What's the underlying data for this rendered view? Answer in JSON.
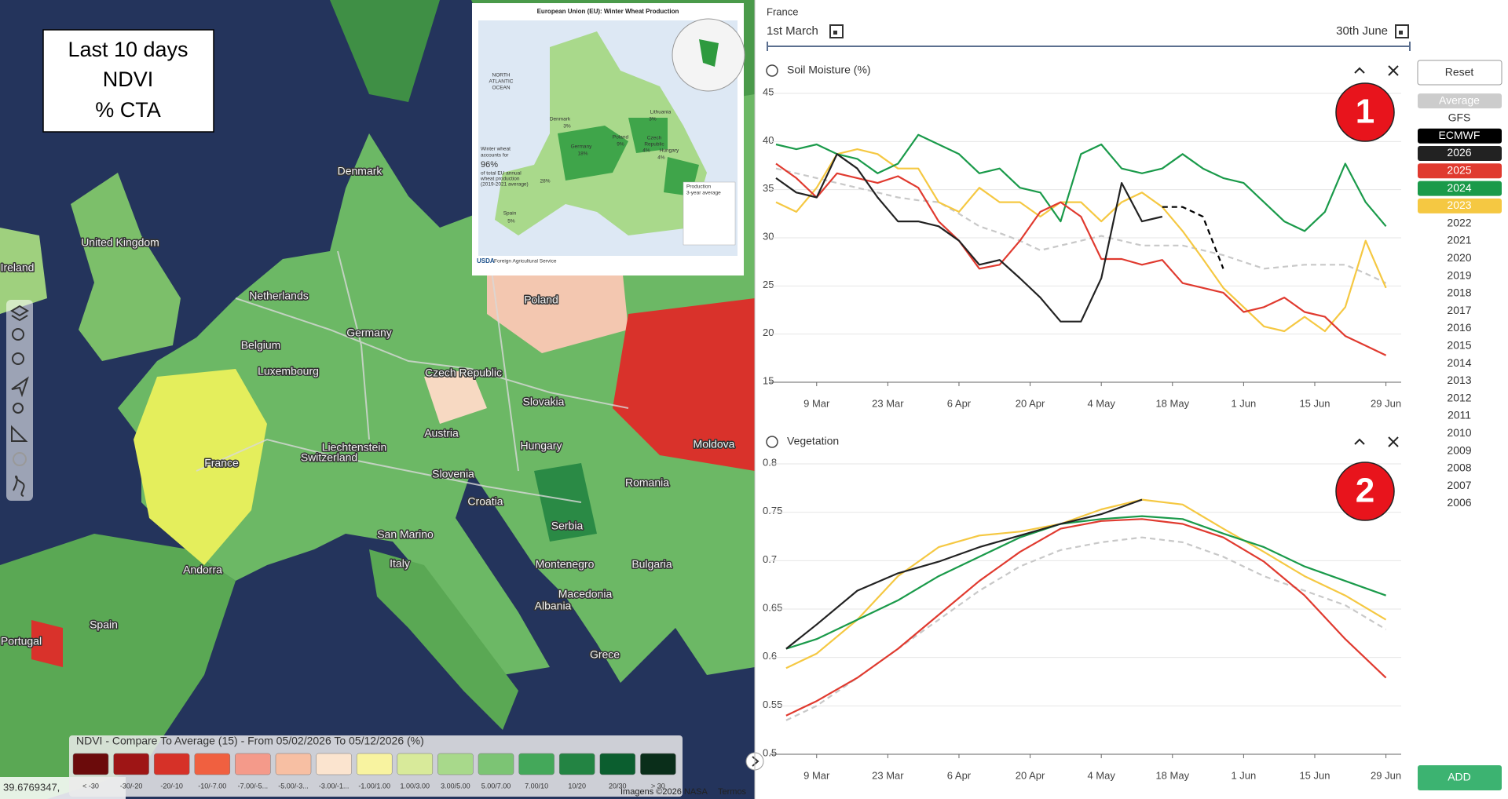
{
  "map": {
    "overlay_box": [
      "Last 10 days",
      "NDVI",
      "% CTA"
    ],
    "countries": [
      "Ireland",
      "United Kingdom",
      "Denmark",
      "Netherlands",
      "Belgium",
      "Luxembourg",
      "Germany",
      "Poland",
      "Czech Republic",
      "Slovakia",
      "Austria",
      "Hungary",
      "Moldova",
      "France",
      "Liechtenstein",
      "Switzerland",
      "Slovenia",
      "Croatia",
      "Romania",
      "Serbia",
      "San Marino",
      "Italy",
      "Montenegro",
      "Bulgaria",
      "Andorra",
      "Macedonia",
      "Albania",
      "Spain",
      "Portugal",
      "Grece"
    ],
    "legend": {
      "title": "NDVI - Compare To Average (15) - From 05/02/2026 To 05/12/2026 (%)",
      "items": [
        {
          "label": "< -30",
          "color": "#6b0b0b"
        },
        {
          "label": "-30/-20",
          "color": "#9e1515"
        },
        {
          "label": "-20/-10",
          "color": "#d63128"
        },
        {
          "label": "-10/-7.00",
          "color": "#f06040"
        },
        {
          "label": "-7.00/-5...",
          "color": "#f49a8a"
        },
        {
          "label": "-5.00/-3...",
          "color": "#f7bfa3"
        },
        {
          "label": "-3.00/-1...",
          "color": "#fbe4cf"
        },
        {
          "label": "-1.00/1.00",
          "color": "#f8f3a0"
        },
        {
          "label": "1.00/3.00",
          "color": "#d8ea9a"
        },
        {
          "label": "3.00/5.00",
          "color": "#a8d98b"
        },
        {
          "label": "5.00/7.00",
          "color": "#7cc474"
        },
        {
          "label": "7.00/10",
          "color": "#44a85a"
        },
        {
          "label": "10/20",
          "color": "#238443"
        },
        {
          "label": "20/30",
          "color": "#0b5e2f"
        },
        {
          "label": "> 30",
          "color": "#0a2e1a"
        }
      ]
    },
    "coordinates": "39.6769347,",
    "attribution": "Imagens ©2026 NASA",
    "terms": "Termos"
  },
  "inset": {
    "title": "European Union (EU): Winter Wheat Production",
    "labels": [
      "NORTH",
      "ATLANTIC",
      "OCEAN",
      "Denmark",
      "3%",
      "Lithuania",
      "3%",
      "Poland",
      "9%",
      "Germany",
      "18%",
      "Czech",
      "Republic",
      "4%",
      "Hungary",
      "4%",
      "Winter wheat",
      "accounts for",
      "96%",
      "of total EU annual",
      "wheat production",
      "(2019-2021 average)",
      "28%",
      "Spain",
      "5%",
      "Production",
      "3-year average",
      "USDA",
      "Foreign Agricultural Service"
    ]
  },
  "panel": {
    "region": "France",
    "start": "1st March",
    "end": "30th June",
    "selector": {
      "reset": "Reset",
      "items": [
        {
          "label": "Average",
          "fill": "#cccccc",
          "text": "#ffffff"
        },
        {
          "label": "GFS"
        },
        {
          "label": "ECMWF",
          "fill": "#000000",
          "text": "#ffffff"
        },
        {
          "label": "2026",
          "fill": "#222222",
          "text": "#ffffff"
        },
        {
          "label": "2025",
          "fill": "#e03a2f",
          "text": "#ffffff"
        },
        {
          "label": "2024",
          "fill": "#1a9a4a",
          "text": "#ffffff"
        },
        {
          "label": "2023",
          "fill": "#f5c842",
          "text": "#ffffff"
        },
        {
          "label": "2022"
        },
        {
          "label": "2021"
        },
        {
          "label": "2020"
        },
        {
          "label": "2019"
        },
        {
          "label": "2018"
        },
        {
          "label": "2017"
        },
        {
          "label": "2016"
        },
        {
          "label": "2015"
        },
        {
          "label": "2014"
        },
        {
          "label": "2013"
        },
        {
          "label": "2012"
        },
        {
          "label": "2011"
        },
        {
          "label": "2010"
        },
        {
          "label": "2009"
        },
        {
          "label": "2008"
        },
        {
          "label": "2007"
        },
        {
          "label": "2006"
        }
      ]
    },
    "add": "ADD"
  },
  "chart_data": [
    {
      "type": "line",
      "title": "Soil Moisture (%)",
      "annotation": "1",
      "grid": true,
      "x": [
        0,
        4,
        8,
        12,
        16,
        20,
        24,
        28,
        32,
        36,
        40,
        44,
        48,
        52,
        56,
        60,
        64,
        68,
        72,
        76,
        80,
        84,
        88,
        92,
        96,
        100,
        104,
        108,
        112,
        116,
        120
      ],
      "xlim": [
        0,
        123
      ],
      "xticks": [
        {
          "value": 8,
          "label": "9 Mar"
        },
        {
          "value": 22,
          "label": "23 Mar"
        },
        {
          "value": 36,
          "label": "6 Apr"
        },
        {
          "value": 50,
          "label": "20 Apr"
        },
        {
          "value": 64,
          "label": "4 May"
        },
        {
          "value": 78,
          "label": "18 May"
        },
        {
          "value": 92,
          "label": "1 Jun"
        },
        {
          "value": 106,
          "label": "15 Jun"
        },
        {
          "value": 120,
          "label": "29 Jun"
        }
      ],
      "ylim": [
        15,
        45
      ],
      "yticks": [
        45,
        40,
        35,
        30,
        25,
        20,
        15
      ],
      "series": [
        {
          "name": "Average",
          "color": "#c8c8c8",
          "dashed": true,
          "values": [
            37.2,
            36.7,
            36.2,
            35.7,
            35.2,
            34.7,
            34.2,
            33.9,
            33.7,
            32.5,
            31.2,
            30.5,
            29.7,
            28.7,
            29.2,
            29.7,
            30.2,
            29.7,
            29.2,
            29.2,
            29.2,
            28.7,
            28.2,
            27.5,
            26.8,
            27.0,
            27.2,
            27.2,
            27.2,
            26.3,
            25.3
          ]
        },
        {
          "name": "2023",
          "color": "#f5c842",
          "values": [
            33.7,
            32.7,
            35.2,
            38.7,
            39.2,
            38.7,
            37.2,
            37.2,
            33.7,
            32.7,
            35.2,
            33.7,
            33.7,
            32.2,
            33.7,
            33.7,
            31.7,
            33.7,
            34.7,
            33.2,
            30.7,
            27.8,
            24.8,
            22.8,
            20.8,
            20.3,
            21.8,
            20.3,
            22.8,
            29.7,
            24.8
          ]
        },
        {
          "name": "2024",
          "color": "#1a9a4a",
          "values": [
            39.7,
            39.2,
            39.7,
            38.7,
            38.2,
            36.7,
            37.7,
            40.7,
            39.7,
            38.7,
            36.7,
            37.2,
            35.2,
            34.7,
            31.7,
            38.7,
            39.7,
            37.2,
            36.7,
            37.2,
            38.7,
            37.2,
            36.2,
            35.7,
            33.7,
            31.7,
            30.7,
            32.7,
            37.7,
            33.7,
            31.2
          ]
        },
        {
          "name": "2025",
          "color": "#e03a2f",
          "values": [
            37.7,
            36.2,
            34.2,
            36.7,
            36.2,
            35.7,
            36.4,
            35.2,
            31.7,
            29.7,
            26.8,
            27.2,
            29.7,
            32.7,
            33.7,
            32.2,
            27.8,
            27.8,
            27.2,
            27.7,
            25.3,
            24.8,
            24.3,
            22.3,
            22.8,
            23.8,
            22.3,
            21.8,
            19.8,
            18.8,
            17.8
          ]
        },
        {
          "name": "2026",
          "color": "#222222",
          "values": [
            36.2,
            34.7,
            34.2,
            38.7,
            37.2,
            34.2,
            31.7,
            31.7,
            31.2,
            29.7,
            27.2,
            27.7,
            25.8,
            23.8,
            21.3,
            21.3,
            25.8,
            35.7,
            31.7,
            32.2,
            null,
            null,
            null,
            null,
            null,
            null,
            null,
            null,
            null,
            null,
            null
          ]
        },
        {
          "name": "ECMWF",
          "color": "#000000",
          "dashed": true,
          "values": [
            null,
            null,
            null,
            null,
            null,
            null,
            null,
            null,
            null,
            null,
            null,
            null,
            null,
            null,
            null,
            null,
            null,
            null,
            null,
            33.2,
            33.2,
            32.2,
            26.8,
            null,
            null,
            null,
            null,
            null,
            null,
            null,
            null
          ]
        }
      ]
    },
    {
      "type": "line",
      "title": "Vegetation",
      "annotation": "2",
      "grid": true,
      "x": [
        2,
        8,
        16,
        24,
        32,
        40,
        48,
        56,
        64,
        72,
        80,
        88,
        96,
        104,
        112,
        120
      ],
      "xlim": [
        0,
        123
      ],
      "xticks": [
        {
          "value": 8,
          "label": "9 Mar"
        },
        {
          "value": 22,
          "label": "23 Mar"
        },
        {
          "value": 36,
          "label": "6 Apr"
        },
        {
          "value": 50,
          "label": "20 Apr"
        },
        {
          "value": 64,
          "label": "4 May"
        },
        {
          "value": 78,
          "label": "18 May"
        },
        {
          "value": 92,
          "label": "1 Jun"
        },
        {
          "value": 106,
          "label": "15 Jun"
        },
        {
          "value": 120,
          "label": "29 Jun"
        }
      ],
      "ylim": [
        0.5,
        0.8
      ],
      "yticks": [
        0.8,
        0.75,
        0.7,
        0.65,
        0.6,
        0.55,
        0.5
      ],
      "series": [
        {
          "name": "Average",
          "color": "#c8c8c8",
          "dashed": true,
          "values": [
            0.535,
            0.55,
            0.579,
            0.609,
            0.639,
            0.669,
            0.694,
            0.711,
            0.719,
            0.724,
            0.719,
            0.704,
            0.684,
            0.669,
            0.654,
            0.629
          ]
        },
        {
          "name": "2023",
          "color": "#f5c842",
          "values": [
            0.589,
            0.604,
            0.639,
            0.684,
            0.714,
            0.726,
            0.73,
            0.738,
            0.753,
            0.763,
            0.758,
            0.733,
            0.709,
            0.684,
            0.664,
            0.639
          ]
        },
        {
          "name": "2024",
          "color": "#1a9a4a",
          "values": [
            0.609,
            0.619,
            0.639,
            0.659,
            0.684,
            0.704,
            0.724,
            0.738,
            0.743,
            0.746,
            0.743,
            0.728,
            0.714,
            0.694,
            0.679,
            0.664
          ]
        },
        {
          "name": "2025",
          "color": "#e03a2f",
          "values": [
            0.54,
            0.555,
            0.579,
            0.609,
            0.644,
            0.679,
            0.709,
            0.733,
            0.741,
            0.743,
            0.738,
            0.724,
            0.699,
            0.664,
            0.619,
            0.579
          ]
        },
        {
          "name": "2026",
          "color": "#222222",
          "values": [
            0.609,
            0.634,
            0.669,
            0.687,
            0.699,
            0.714,
            0.726,
            0.738,
            0.748,
            0.763,
            null,
            null,
            null,
            null,
            null,
            null
          ]
        }
      ]
    }
  ]
}
